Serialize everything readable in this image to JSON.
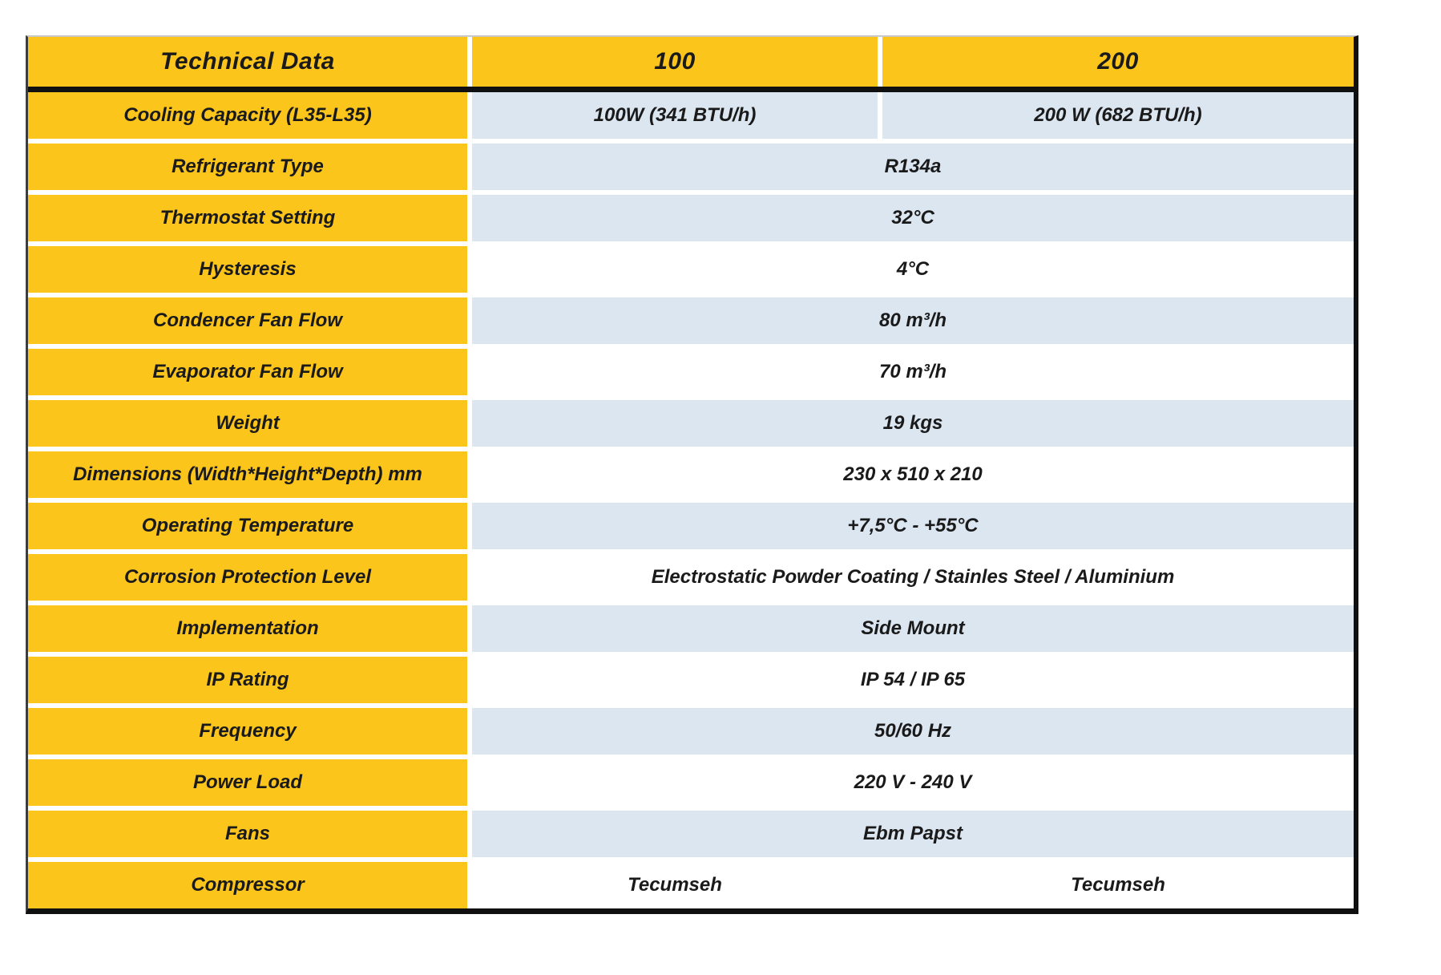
{
  "colors": {
    "header_yellow": "#fbc51c",
    "row_blue": "#dce6f1",
    "row_white": "#ffffff",
    "border_black": "#101010",
    "text": "#1a1a1a"
  },
  "table": {
    "header": {
      "technical_data": "Technical Data",
      "model_100": "100",
      "model_200": "200"
    },
    "rows": [
      {
        "label": "Cooling Capacity (L35-L35)",
        "value_100": "100W (341 BTU/h)",
        "value_200": "200 W (682 BTU/h)",
        "shade": "blue"
      },
      {
        "label": "Refrigerant Type",
        "value": "R134a",
        "shade": "blue"
      },
      {
        "label": "Thermostat Setting",
        "value": "32°C",
        "shade": "blue"
      },
      {
        "label": "Hysteresis",
        "value": "4°C",
        "shade": "white"
      },
      {
        "label": "Condencer Fan Flow",
        "value": "80 m³/h",
        "shade": "blue"
      },
      {
        "label": "Evaporator Fan Flow",
        "value": "70 m³/h",
        "shade": "white"
      },
      {
        "label": "Weight",
        "value": "19 kgs",
        "shade": "blue"
      },
      {
        "label": "Dimensions (Width*Height*Depth) mm",
        "value": "230 x 510 x 210",
        "shade": "white"
      },
      {
        "label": "Operating Temperature",
        "value": "+7,5°C - +55°C",
        "shade": "blue"
      },
      {
        "label": "Corrosion Protection Level",
        "value": "Electrostatic Powder Coating / Stainles Steel / Aluminium",
        "shade": "white"
      },
      {
        "label": "Implementation",
        "value": "Side Mount",
        "shade": "blue"
      },
      {
        "label": "IP Rating",
        "value": "IP 54 / IP 65",
        "shade": "white"
      },
      {
        "label": "Frequency",
        "value": "50/60 Hz",
        "shade": "blue"
      },
      {
        "label": "Power Load",
        "value": "220 V - 240 V",
        "shade": "white"
      },
      {
        "label": "Fans",
        "value": "Ebm Papst",
        "shade": "blue"
      },
      {
        "label": "Compressor",
        "value_100": "Tecumseh",
        "value_200": "Tecumseh",
        "shade": "white"
      }
    ]
  }
}
